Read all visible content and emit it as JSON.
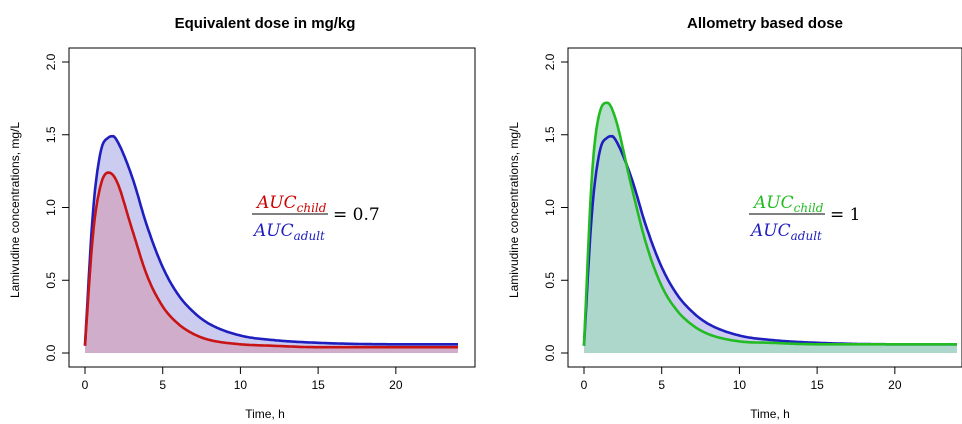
{
  "chart_data": [
    {
      "type": "area",
      "title": "Equivalent dose in mg/kg",
      "xlabel": "Time, h",
      "ylabel": "Lamivudine concentrations, mg/L",
      "xlim": [
        0,
        24
      ],
      "ylim": [
        0,
        2.0
      ],
      "x_ticks": [
        "0",
        "5",
        "10",
        "15",
        "20"
      ],
      "y_ticks": [
        "0.0",
        "0.5",
        "1.0",
        "1.5",
        "2.0"
      ],
      "grid": false,
      "annotation": {
        "numerator_base": "AUC",
        "numerator_sub": "child",
        "denominator_base": "AUC",
        "denominator_sub": "adult",
        "equals": "= 0.7",
        "numerator_color": "#cc0000",
        "denominator_color": "#1f1fbf"
      },
      "series": [
        {
          "color": "#1f1fbf",
          "fill": "#ccccf0",
          "x": [
            0,
            0.5,
            1,
            1.5,
            1.8,
            2,
            3,
            4,
            5,
            6,
            7,
            8,
            10,
            12,
            15,
            20,
            24
          ],
          "y": [
            0.05,
            0.95,
            1.38,
            1.48,
            1.49,
            1.47,
            1.22,
            0.87,
            0.59,
            0.4,
            0.28,
            0.2,
            0.12,
            0.09,
            0.07,
            0.06,
            0.06
          ]
        },
        {
          "color": "#c81414",
          "fill": "#d0a8c4",
          "x": [
            0,
            0.5,
            1,
            1.5,
            2,
            3,
            4,
            5,
            6,
            7,
            8,
            10,
            12,
            15,
            20,
            24
          ],
          "y": [
            0.05,
            0.8,
            1.15,
            1.24,
            1.19,
            0.86,
            0.53,
            0.32,
            0.2,
            0.13,
            0.09,
            0.06,
            0.05,
            0.04,
            0.04,
            0.04
          ]
        }
      ]
    },
    {
      "type": "area",
      "title": "Allometry based dose",
      "xlabel": "Time, h",
      "ylabel": "Lamivudine concentrations, mg/L",
      "xlim": [
        0,
        24
      ],
      "ylim": [
        0,
        2.0
      ],
      "x_ticks": [
        "0",
        "5",
        "10",
        "15",
        "20"
      ],
      "y_ticks": [
        "0.0",
        "0.5",
        "1.0",
        "1.5",
        "2.0"
      ],
      "grid": false,
      "annotation": {
        "numerator_base": "AUC",
        "numerator_sub": "child",
        "denominator_base": "AUC",
        "denominator_sub": "adult",
        "equals": "= 1",
        "numerator_color": "#22bb22",
        "denominator_color": "#1f1fbf"
      },
      "series": [
        {
          "color": "#1f1fbf",
          "fill": "#ccccf0",
          "x": [
            0,
            0.5,
            1,
            1.5,
            1.8,
            2,
            3,
            4,
            5,
            6,
            7,
            8,
            10,
            12,
            15,
            20,
            24
          ],
          "y": [
            0.05,
            0.95,
            1.38,
            1.48,
            1.49,
            1.47,
            1.22,
            0.87,
            0.59,
            0.4,
            0.28,
            0.2,
            0.12,
            0.09,
            0.07,
            0.06,
            0.06
          ]
        },
        {
          "color": "#22bb22",
          "fill": "#a8d8c4",
          "x": [
            0,
            0.5,
            1,
            1.5,
            2,
            3,
            4,
            5,
            6,
            7,
            8,
            10,
            12,
            15,
            20,
            24
          ],
          "y": [
            0.05,
            1.2,
            1.65,
            1.72,
            1.62,
            1.17,
            0.75,
            0.46,
            0.29,
            0.19,
            0.13,
            0.08,
            0.07,
            0.06,
            0.06,
            0.06
          ]
        }
      ]
    }
  ]
}
